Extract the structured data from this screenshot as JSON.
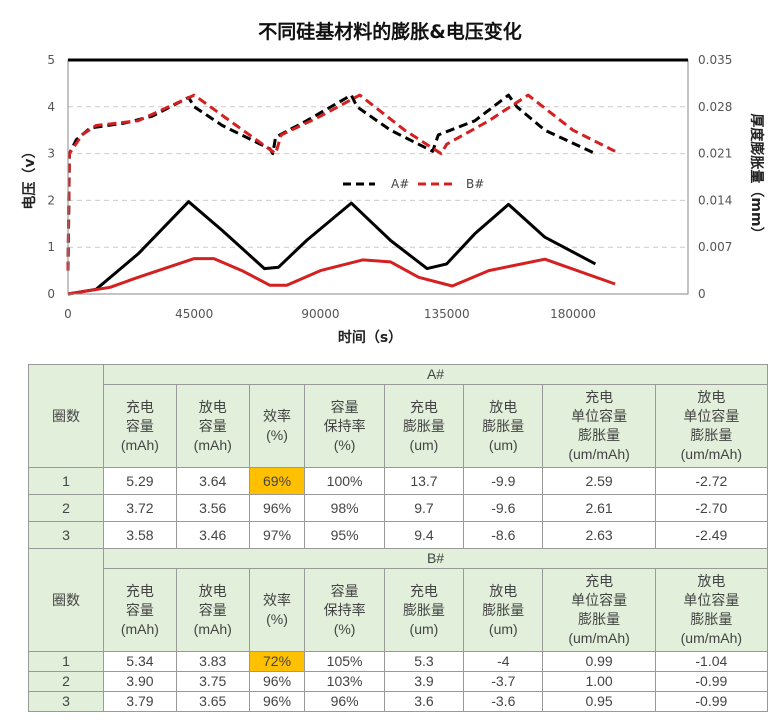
{
  "chart_data": {
    "type": "line",
    "title": "不同硅基材料的膨胀&电压变化",
    "xlabel": "时间（s）",
    "ylabel": "电压（v）",
    "y2label": "厚度膨胀量（mm）",
    "xlim": [
      0,
      221000
    ],
    "ylim": [
      0,
      5
    ],
    "y2lim": [
      0,
      0.035
    ],
    "xticks": [
      "0",
      "45000",
      "90000",
      "135000",
      "180000"
    ],
    "yticks": [
      "0",
      "1",
      "2",
      "3",
      "4",
      "5"
    ],
    "y2ticks": [
      "0",
      "0.007",
      "0.014",
      "0.021",
      "0.028",
      "0.035"
    ],
    "grid": true,
    "legend_position": "center",
    "legend": [
      "A#",
      "B#"
    ],
    "series": [
      {
        "name": "A# voltage",
        "axis": "left",
        "style": "dashed",
        "color": "#000000",
        "points": [
          [
            0,
            0.5
          ],
          [
            500,
            3.0
          ],
          [
            3000,
            3.3
          ],
          [
            8000,
            3.55
          ],
          [
            20000,
            3.65
          ],
          [
            30000,
            3.8
          ],
          [
            43000,
            4.2
          ],
          [
            45000,
            4.0
          ],
          [
            55000,
            3.6
          ],
          [
            72000,
            3.1
          ],
          [
            73000,
            3.0
          ],
          [
            74000,
            3.35
          ],
          [
            85000,
            3.7
          ],
          [
            101000,
            4.25
          ],
          [
            103000,
            4.0
          ],
          [
            115000,
            3.5
          ],
          [
            130000,
            3.05
          ],
          [
            132000,
            3.4
          ],
          [
            145000,
            3.7
          ],
          [
            157000,
            4.25
          ],
          [
            160000,
            4.0
          ],
          [
            170000,
            3.5
          ],
          [
            188000,
            3.0
          ]
        ]
      },
      {
        "name": "B# voltage",
        "axis": "left",
        "style": "dashed",
        "color": "#d42020",
        "points": [
          [
            0,
            0.5
          ],
          [
            500,
            3.0
          ],
          [
            5000,
            3.4
          ],
          [
            10000,
            3.6
          ],
          [
            25000,
            3.7
          ],
          [
            45000,
            4.25
          ],
          [
            60000,
            3.6
          ],
          [
            74000,
            3.0
          ],
          [
            76000,
            3.4
          ],
          [
            90000,
            3.8
          ],
          [
            104000,
            4.25
          ],
          [
            120000,
            3.5
          ],
          [
            133000,
            3.0
          ],
          [
            135000,
            3.2
          ],
          [
            150000,
            3.7
          ],
          [
            164000,
            4.25
          ],
          [
            180000,
            3.5
          ],
          [
            195000,
            3.05
          ]
        ]
      },
      {
        "name": "A# thickness",
        "axis": "right",
        "style": "solid",
        "color": "#000000",
        "points": [
          [
            0,
            0
          ],
          [
            10000,
            0.0007
          ],
          [
            25000,
            0.006
          ],
          [
            43000,
            0.0138
          ],
          [
            55000,
            0.0095
          ],
          [
            70000,
            0.0038
          ],
          [
            75000,
            0.004
          ],
          [
            85000,
            0.008
          ],
          [
            101000,
            0.0136
          ],
          [
            115000,
            0.008
          ],
          [
            128000,
            0.0038
          ],
          [
            135000,
            0.0045
          ],
          [
            145000,
            0.009
          ],
          [
            157000,
            0.0134
          ],
          [
            170000,
            0.0085
          ],
          [
            188000,
            0.0045
          ]
        ]
      },
      {
        "name": "B# thickness",
        "axis": "right",
        "style": "solid",
        "color": "#d42020",
        "points": [
          [
            0,
            0
          ],
          [
            15000,
            0.001
          ],
          [
            25000,
            0.0025
          ],
          [
            45000,
            0.0053
          ],
          [
            52000,
            0.0053
          ],
          [
            62000,
            0.0035
          ],
          [
            72000,
            0.0013
          ],
          [
            78000,
            0.0013
          ],
          [
            90000,
            0.0035
          ],
          [
            105000,
            0.0051
          ],
          [
            115000,
            0.0048
          ],
          [
            125000,
            0.0025
          ],
          [
            137000,
            0.0012
          ],
          [
            150000,
            0.0035
          ],
          [
            170000,
            0.0052
          ],
          [
            195000,
            0.0015
          ]
        ]
      }
    ]
  },
  "table": {
    "cycle_header": "圈数",
    "headers": [
      "充电\n容量\n(mAh)",
      "放电\n容量\n(mAh)",
      "效率\n(%)",
      "容量\n保持率\n(%)",
      "充电\n膨胀量\n(um)",
      "放电\n膨胀量\n(um)",
      "充电\n单位容量\n膨胀量\n(um/mAh)",
      "放电\n单位容量\n膨胀量\n(um/mAh)"
    ],
    "groups": [
      {
        "name": "A#",
        "rows": [
          [
            "1",
            "5.29",
            "3.64",
            "69%",
            "100%",
            "13.7",
            "-9.9",
            "2.59",
            "-2.72"
          ],
          [
            "2",
            "3.72",
            "3.56",
            "96%",
            "98%",
            "9.7",
            "-9.6",
            "2.61",
            "-2.70"
          ],
          [
            "3",
            "3.58",
            "3.46",
            "97%",
            "95%",
            "9.4",
            "-8.6",
            "2.63",
            "-2.49"
          ]
        ]
      },
      {
        "name": "B#",
        "rows": [
          [
            "1",
            "5.34",
            "3.83",
            "72%",
            "105%",
            "5.3",
            "-4",
            "0.99",
            "-1.04"
          ],
          [
            "2",
            "3.90",
            "3.75",
            "96%",
            "103%",
            "3.9",
            "-3.7",
            "1.00",
            "-0.99"
          ],
          [
            "3",
            "3.79",
            "3.65",
            "96%",
            "96%",
            "3.6",
            "-3.6",
            "0.95",
            "-0.99"
          ]
        ]
      }
    ],
    "highlight_color": "#ffc000"
  }
}
